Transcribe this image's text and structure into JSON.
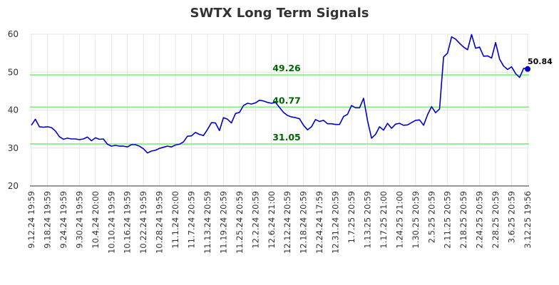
{
  "chart_data": {
    "type": "line",
    "title": "SWTX Long Term Signals",
    "xlabel": "",
    "ylabel": "",
    "ylim": [
      20,
      60
    ],
    "yticks": [
      20,
      30,
      40,
      50,
      60
    ],
    "grid": true,
    "xtick_labels": [
      "9.12.24 19:59",
      "9.18.24 19:59",
      "9.24.24 19:59",
      "9.30.24 19:59",
      "10.4.24 20:00",
      "10.10.24 19:59",
      "10.16.24 19:59",
      "10.22.24 19:59",
      "10.28.24 19:59",
      "11.1.24 20:00",
      "11.7.24 20:59",
      "11.13.24 20:59",
      "11.19.24 20:59",
      "11.25.24 20:59",
      "12.2.24 20:59",
      "12.6.24 21:00",
      "12.12.24 20:59",
      "12.18.24 20:59",
      "12.24.24 17:59",
      "12.31.24 20:59",
      "1.7.25 20:59",
      "1.13.25 20:59",
      "1.17.25 21:00",
      "1.24.25 21:00",
      "1.30.25 20:59",
      "2.5.25 20:59",
      "2.11.25 20:59",
      "2.18.25 20:59",
      "2.24.25 20:59",
      "2.28.25 20:59",
      "3.6.25 20:59",
      "3.12.25 19:56"
    ],
    "reference_lines": [
      {
        "value": 49.26,
        "label": "49.26",
        "color": "#90ee90"
      },
      {
        "value": 40.77,
        "label": "40.77",
        "color": "#90ee90"
      },
      {
        "value": 31.05,
        "label": "31.05",
        "color": "#90ee90"
      }
    ],
    "series": [
      {
        "color": "#0000cc",
        "values": [
          36.0,
          37.6,
          35.6,
          35.5,
          35.6,
          35.4,
          34.5,
          33.0,
          32.3,
          32.6,
          32.4,
          32.4,
          32.2,
          32.4,
          32.9,
          31.9,
          32.7,
          32.3,
          32.4,
          31.0,
          30.5,
          30.7,
          30.5,
          30.5,
          30.3,
          30.9,
          30.9,
          30.5,
          29.8,
          28.7,
          29.2,
          29.4,
          29.9,
          30.2,
          30.5,
          30.3,
          30.8,
          31.0,
          31.6,
          33.1,
          33.2,
          34.1,
          33.6,
          33.3,
          34.9,
          36.7,
          36.6,
          34.6,
          38.0,
          37.6,
          36.6,
          39.1,
          39.4,
          41.2,
          41.8,
          41.6,
          41.9,
          42.6,
          42.4,
          42.0,
          41.8,
          42.0,
          40.7,
          39.4,
          38.6,
          38.2,
          38.0,
          37.7,
          36.0,
          34.8,
          35.6,
          37.5,
          37.0,
          37.3,
          36.4,
          36.4,
          36.2,
          36.2,
          38.3,
          38.9,
          41.2,
          40.6,
          40.6,
          43.1,
          37.2,
          32.6,
          33.6,
          35.6,
          34.7,
          36.5,
          35.2,
          36.3,
          36.5,
          36.0,
          36.1,
          36.7,
          37.3,
          37.4,
          36.0,
          38.8,
          40.9,
          39.3,
          40.3,
          54.0,
          55.0,
          59.3,
          58.7,
          57.6,
          56.6,
          55.9,
          59.9,
          56.3,
          56.6,
          54.2,
          54.3,
          53.7,
          57.8,
          53.4,
          51.6,
          50.7,
          51.4,
          49.6,
          48.6,
          51.0,
          50.84
        ]
      }
    ],
    "last_value_label": "50.84"
  }
}
